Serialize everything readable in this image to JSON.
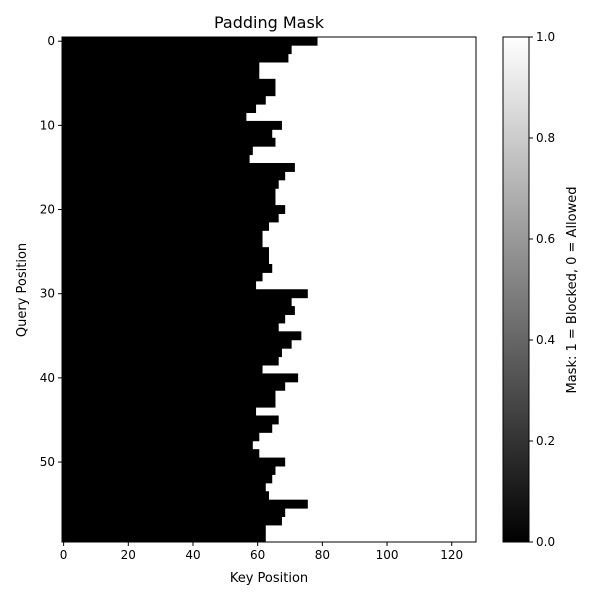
{
  "chart_data": {
    "type": "heatmap",
    "title": "Padding Mask",
    "xlabel": "Key Position",
    "ylabel": "Query Position",
    "x_ticks": [
      "0",
      "20",
      "40",
      "60",
      "80",
      "100",
      "120"
    ],
    "y_ticks": [
      "0",
      "10",
      "20",
      "30",
      "40",
      "50"
    ],
    "xlim": [
      -0.5,
      127.5
    ],
    "ylim": [
      59.5,
      -0.5
    ],
    "grid": false,
    "colormap": "gray",
    "colors": {
      "min": "#000000",
      "max": "#ffffff",
      "frame": "#000000"
    },
    "colorbar": {
      "label": "Mask: 1 = Blocked, 0 = Allowed",
      "range": [
        0.0,
        1.0
      ],
      "ticks": [
        "0.0",
        "0.2",
        "0.4",
        "0.6",
        "0.8",
        "1.0"
      ]
    },
    "rows": 60,
    "cols": 128,
    "cell_rule": "value is 0 (allowed) for key positions < boundary of the row, 1 (blocked) otherwise",
    "boundaries": [
      79,
      71,
      70,
      61,
      61,
      66,
      66,
      63,
      60,
      57,
      68,
      65,
      66,
      59,
      58,
      72,
      69,
      67,
      66,
      66,
      69,
      67,
      64,
      62,
      62,
      64,
      64,
      65,
      62,
      60,
      76,
      71,
      72,
      69,
      67,
      74,
      71,
      68,
      67,
      62,
      73,
      69,
      66,
      66,
      60,
      67,
      65,
      61,
      59,
      61,
      69,
      66,
      65,
      63,
      64,
      76,
      69,
      68,
      63,
      63
    ]
  }
}
